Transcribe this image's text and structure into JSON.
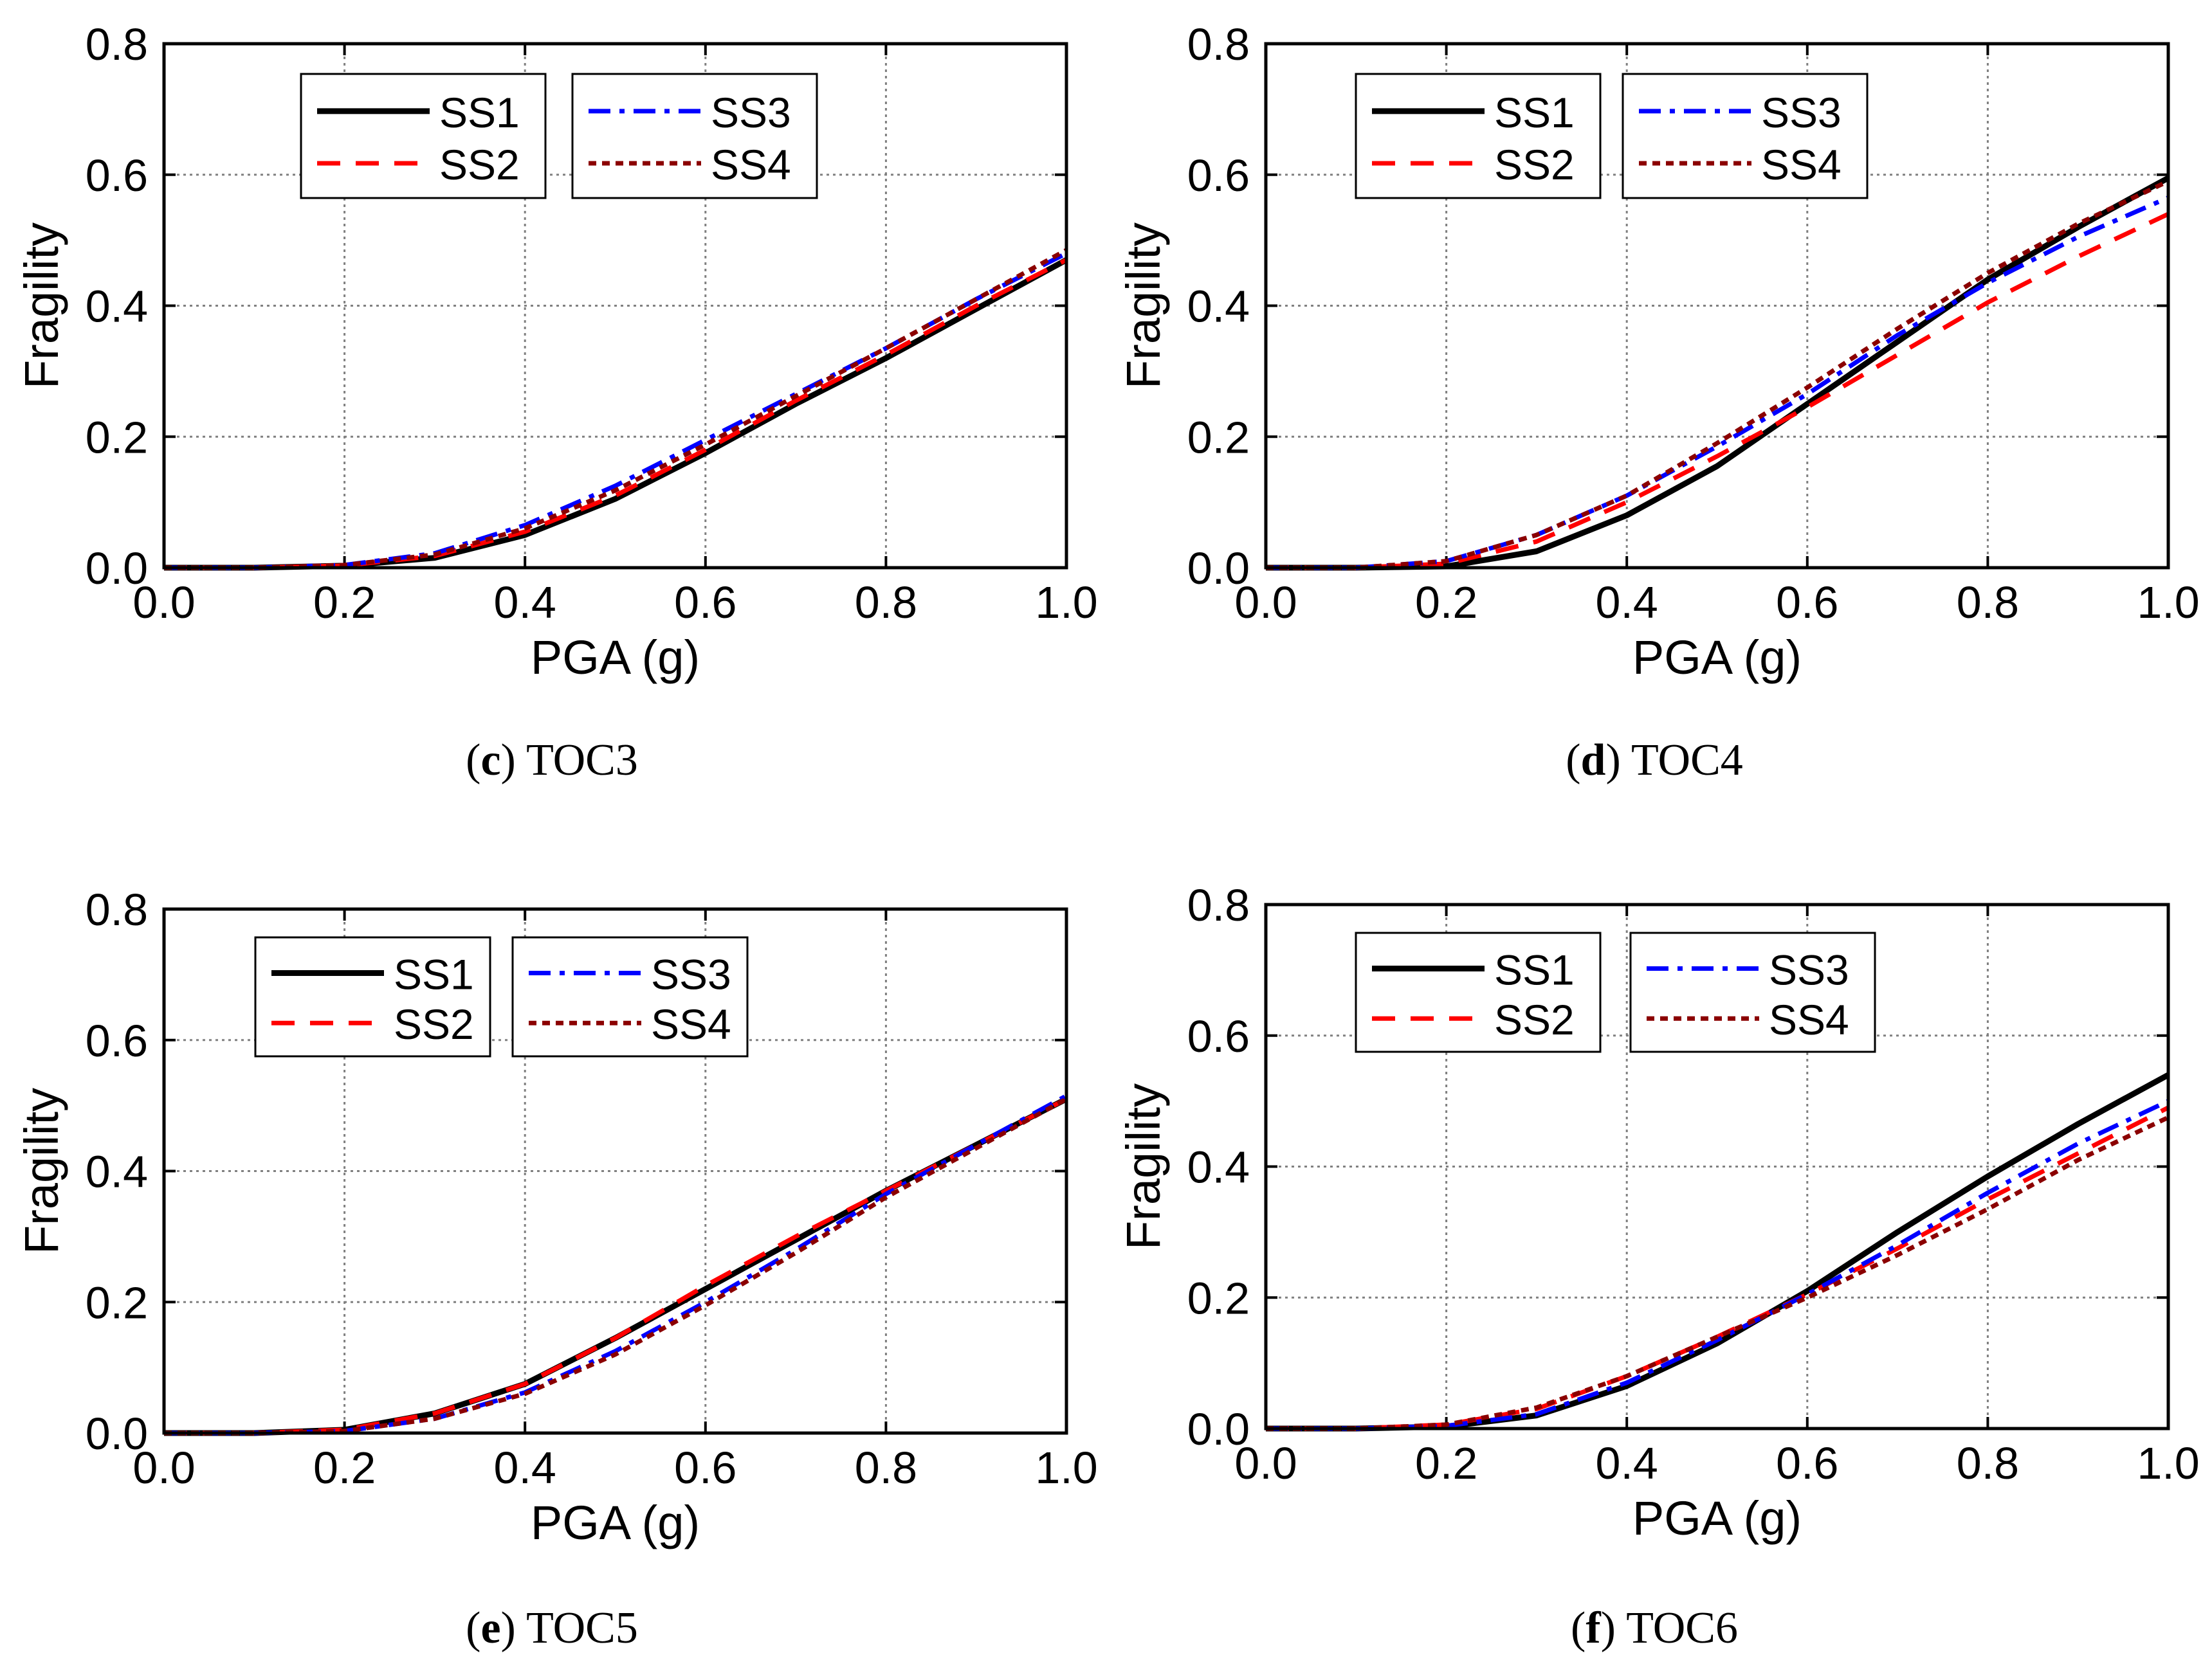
{
  "figure": {
    "name": "fragility-curves-figure"
  },
  "colors": {
    "SS1": "#000000",
    "SS2": "#ff0000",
    "SS3": "#0000ff",
    "SS4": "#8b0000",
    "grid": "#808080",
    "frame": "#000000"
  },
  "chart_data": [
    {
      "type": "line",
      "caption_letter": "c",
      "caption_text": " TOC3",
      "xlabel": "PGA (g)",
      "ylabel": "Fragility",
      "xlim": [
        0.0,
        1.0
      ],
      "ylim": [
        0.0,
        0.8
      ],
      "xticks": [
        "0.0",
        "0.2",
        "0.4",
        "0.6",
        "0.8",
        "1.0"
      ],
      "yticks": [
        "0.0",
        "0.2",
        "0.4",
        "0.6",
        "0.8"
      ],
      "grid": true,
      "legend_placement": "top-left",
      "x": [
        0.0,
        0.1,
        0.2,
        0.3,
        0.4,
        0.5,
        0.6,
        0.7,
        0.8,
        0.9,
        1.0
      ],
      "series": [
        {
          "name": "SS1",
          "values": [
            0.0,
            0.0,
            0.003,
            0.015,
            0.05,
            0.105,
            0.175,
            0.25,
            0.32,
            0.395,
            0.47
          ]
        },
        {
          "name": "SS2",
          "values": [
            0.0,
            0.0,
            0.003,
            0.018,
            0.055,
            0.11,
            0.18,
            0.255,
            0.325,
            0.4,
            0.47
          ]
        },
        {
          "name": "SS3",
          "values": [
            0.0,
            0.0,
            0.004,
            0.022,
            0.065,
            0.125,
            0.195,
            0.265,
            0.335,
            0.41,
            0.48
          ]
        },
        {
          "name": "SS4",
          "values": [
            0.0,
            0.0,
            0.004,
            0.02,
            0.06,
            0.118,
            0.188,
            0.262,
            0.335,
            0.41,
            0.485
          ]
        }
      ]
    },
    {
      "type": "line",
      "caption_letter": "d",
      "caption_text": " TOC4",
      "xlabel": "PGA (g)",
      "ylabel": "Fragility",
      "xlim": [
        0.0,
        1.0
      ],
      "ylim": [
        0.0,
        0.8
      ],
      "xticks": [
        "0.0",
        "0.2",
        "0.4",
        "0.6",
        "0.8",
        "1.0"
      ],
      "yticks": [
        "0.0",
        "0.2",
        "0.4",
        "0.6",
        "0.8"
      ],
      "grid": true,
      "legend_placement": "top-left",
      "x": [
        0.0,
        0.1,
        0.2,
        0.3,
        0.4,
        0.5,
        0.6,
        0.7,
        0.8,
        0.9,
        1.0
      ],
      "series": [
        {
          "name": "SS1",
          "values": [
            0.0,
            0.0,
            0.002,
            0.025,
            0.08,
            0.155,
            0.25,
            0.345,
            0.44,
            0.52,
            0.595
          ]
        },
        {
          "name": "SS2",
          "values": [
            0.0,
            0.0,
            0.006,
            0.04,
            0.1,
            0.17,
            0.245,
            0.325,
            0.405,
            0.475,
            0.54
          ]
        },
        {
          "name": "SS3",
          "values": [
            0.0,
            0.0,
            0.01,
            0.05,
            0.11,
            0.185,
            0.265,
            0.355,
            0.435,
            0.505,
            0.565
          ]
        },
        {
          "name": "SS4",
          "values": [
            0.0,
            0.0,
            0.01,
            0.05,
            0.11,
            0.19,
            0.275,
            0.365,
            0.45,
            0.525,
            0.59
          ]
        }
      ]
    },
    {
      "type": "line",
      "caption_letter": "e",
      "caption_text": " TOC5",
      "xlabel": "PGA (g)",
      "ylabel": "Fragility",
      "xlim": [
        0.0,
        1.0
      ],
      "ylim": [
        0.0,
        0.8
      ],
      "xticks": [
        "0.0",
        "0.2",
        "0.4",
        "0.6",
        "0.8",
        "1.0"
      ],
      "yticks": [
        "0.0",
        "0.2",
        "0.4",
        "0.6",
        "0.8"
      ],
      "grid": true,
      "legend_placement": "top-left",
      "x": [
        0.0,
        0.1,
        0.2,
        0.3,
        0.4,
        0.5,
        0.6,
        0.7,
        0.8,
        0.9,
        1.0
      ],
      "series": [
        {
          "name": "SS1",
          "values": [
            0.0,
            0.0,
            0.005,
            0.03,
            0.075,
            0.145,
            0.22,
            0.295,
            0.37,
            0.44,
            0.51
          ]
        },
        {
          "name": "SS2",
          "values": [
            0.0,
            0.0,
            0.005,
            0.03,
            0.075,
            0.145,
            0.225,
            0.3,
            0.37,
            0.44,
            0.51
          ]
        },
        {
          "name": "SS3",
          "values": [
            0.0,
            0.0,
            0.003,
            0.022,
            0.062,
            0.125,
            0.2,
            0.28,
            0.365,
            0.44,
            0.515
          ]
        },
        {
          "name": "SS4",
          "values": [
            0.0,
            0.0,
            0.003,
            0.022,
            0.06,
            0.12,
            0.195,
            0.275,
            0.36,
            0.435,
            0.51
          ]
        }
      ]
    },
    {
      "type": "line",
      "caption_letter": "f",
      "caption_text": " TOC6",
      "xlabel": "PGA (g)",
      "ylabel": "Fragility",
      "xlim": [
        0.0,
        1.0
      ],
      "ylim": [
        0.0,
        0.8
      ],
      "xticks": [
        "0.0",
        "0.2",
        "0.4",
        "0.6",
        "0.8",
        "1.0"
      ],
      "yticks": [
        "0.0",
        "0.2",
        "0.4",
        "0.6",
        "0.8"
      ],
      "grid": true,
      "legend_placement": "top-left",
      "x": [
        0.0,
        0.1,
        0.2,
        0.3,
        0.4,
        0.5,
        0.6,
        0.7,
        0.8,
        0.9,
        1.0
      ],
      "series": [
        {
          "name": "SS1",
          "values": [
            0.0,
            0.0,
            0.003,
            0.02,
            0.065,
            0.13,
            0.21,
            0.3,
            0.385,
            0.465,
            0.54
          ]
        },
        {
          "name": "SS2",
          "values": [
            0.0,
            0.0,
            0.006,
            0.03,
            0.08,
            0.14,
            0.205,
            0.275,
            0.35,
            0.42,
            0.49
          ]
        },
        {
          "name": "SS3",
          "values": [
            0.0,
            0.0,
            0.004,
            0.022,
            0.07,
            0.135,
            0.205,
            0.28,
            0.36,
            0.435,
            0.5
          ]
        },
        {
          "name": "SS4",
          "values": [
            0.0,
            0.0,
            0.006,
            0.032,
            0.08,
            0.14,
            0.2,
            0.265,
            0.335,
            0.41,
            0.475
          ]
        }
      ]
    }
  ]
}
